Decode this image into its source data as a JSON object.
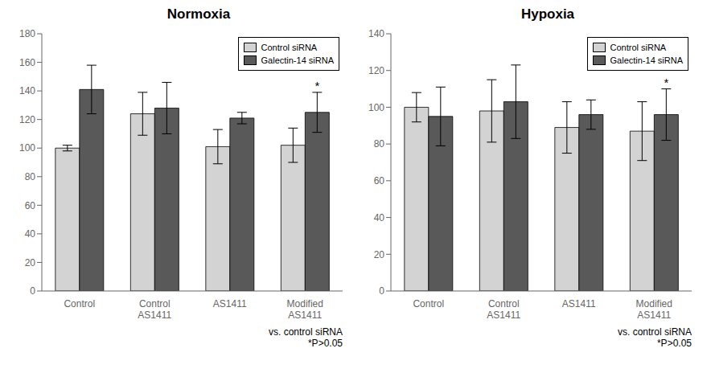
{
  "chart_data": [
    {
      "type": "bar",
      "title": "Normoxia",
      "categories": [
        "Control",
        "Control\nAS1411",
        "AS1411",
        "Modified\nAS1411"
      ],
      "series": [
        {
          "name": "Control siRNA",
          "color": "#d3d3d3",
          "values": [
            100,
            124,
            101,
            102
          ],
          "errors": [
            2,
            15,
            12,
            12
          ]
        },
        {
          "name": "Galectin-14 siRNA",
          "color": "#595959",
          "values": [
            141,
            128,
            121,
            125
          ],
          "errors": [
            17,
            18,
            4,
            14
          ]
        }
      ],
      "ylim": [
        0,
        180
      ],
      "yticks": [
        0,
        20,
        40,
        60,
        80,
        100,
        120,
        140,
        160,
        180
      ],
      "grid": false,
      "legend": "upper right",
      "annotations": [
        {
          "text": "*",
          "series": "Galectin-14 siRNA",
          "category": "Modified\nAS1411"
        }
      ],
      "footnote": "vs. control siRNA\n*P>0.05"
    },
    {
      "type": "bar",
      "title": "Hypoxia",
      "categories": [
        "Control",
        "Control\nAS1411",
        "AS1411",
        "Modified\nAS1411"
      ],
      "series": [
        {
          "name": "Control siRNA",
          "color": "#d3d3d3",
          "values": [
            100,
            98,
            89,
            87
          ],
          "errors": [
            8,
            17,
            14,
            16
          ]
        },
        {
          "name": "Galectin-14 siRNA",
          "color": "#595959",
          "values": [
            95,
            103,
            96,
            96
          ],
          "errors": [
            16,
            20,
            8,
            14
          ]
        }
      ],
      "ylim": [
        0,
        140
      ],
      "yticks": [
        0,
        20,
        40,
        60,
        80,
        100,
        120,
        140
      ],
      "grid": false,
      "legend": "upper right",
      "annotations": [
        {
          "text": "*",
          "series": "Galectin-14 siRNA",
          "category": "Modified\nAS1411"
        }
      ],
      "footnote": "vs. control siRNA\n*P>0.05"
    }
  ]
}
